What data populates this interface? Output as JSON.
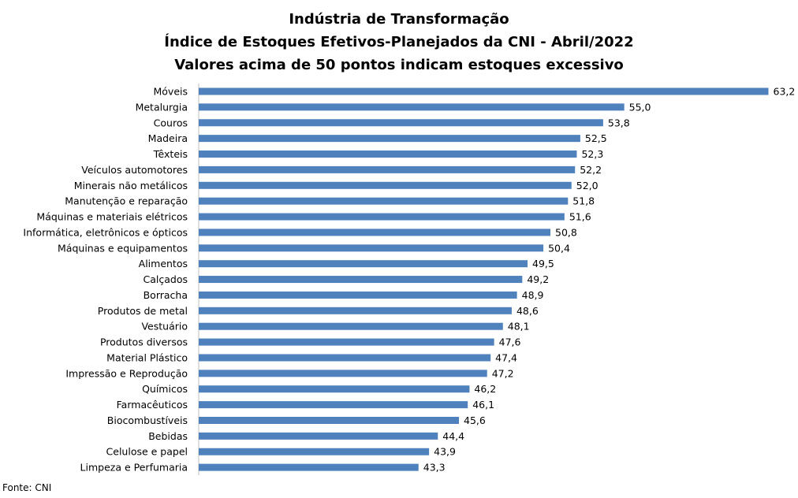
{
  "chart_data": {
    "type": "bar",
    "orientation": "horizontal",
    "title_lines": [
      "Indústria de Transformação",
      "Índice de Estoques Efetivos-Planejados da CNI - Abril/2022",
      "Valores acima de 50 pontos indicam estoques excessivo"
    ],
    "categories": [
      "Móveis",
      "Metalurgia",
      "Couros",
      "Madeira",
      "Têxteis",
      "Veículos automotores",
      "Minerais não metálicos",
      "Manutenção e reparação",
      "Máquinas e materiais elétricos",
      "Informática, eletrônicos e ópticos",
      "Máquinas e equipamentos",
      "Alimentos",
      "Calçados",
      "Borracha",
      "Produtos de metal",
      "Vestuário",
      "Produtos diversos",
      "Material Plástico",
      "Impressão e Reprodução",
      "Químicos",
      "Farmacêuticos",
      "Biocombustíveis",
      "Bebidas",
      "Celulose e papel",
      "Limpeza e Perfumaria"
    ],
    "values": [
      63.2,
      55.0,
      53.8,
      52.5,
      52.3,
      52.2,
      52.0,
      51.8,
      51.6,
      50.8,
      50.4,
      49.5,
      49.2,
      48.9,
      48.6,
      48.1,
      47.6,
      47.4,
      47.2,
      46.2,
      46.1,
      45.6,
      44.4,
      43.9,
      43.3
    ],
    "value_labels": [
      "63,2",
      "55,0",
      "53,8",
      "52,5",
      "52,3",
      "52,2",
      "52,0",
      "51,8",
      "51,6",
      "50,8",
      "50,4",
      "49,5",
      "49,2",
      "48,9",
      "48,6",
      "48,1",
      "47,6",
      "47,4",
      "47,2",
      "46,2",
      "46,1",
      "45,6",
      "44,4",
      "43,9",
      "43,3"
    ],
    "bar_color": "#4f81bd",
    "grid": false,
    "legend": "none",
    "source": "Fonte: CNI"
  }
}
